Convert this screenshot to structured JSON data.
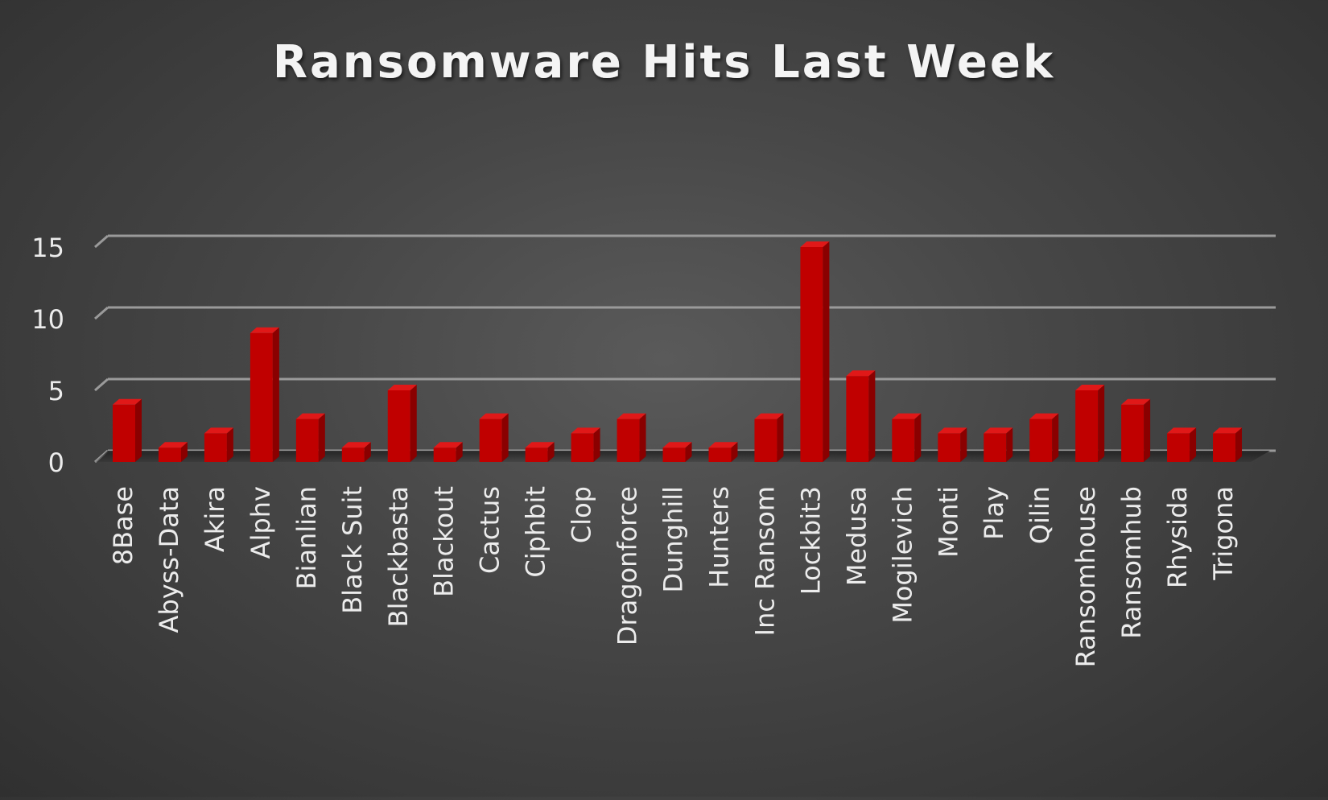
{
  "chart_data": {
    "type": "bar",
    "title": "Ransomware Hits Last Week",
    "xlabel": "",
    "ylabel": "",
    "ylim": [
      0,
      15
    ],
    "yticks": [
      0,
      5,
      10,
      15
    ],
    "grid": true,
    "legend": "none",
    "bar_color": "#c00000",
    "bar_side_color": "#8a0000",
    "bar_top_color": "#e01818",
    "categories": [
      "8Base",
      "Abyss-Data",
      "Akira",
      "Alphv",
      "Bianlian",
      "Black Suit",
      "Blackbasta",
      "Blackout",
      "Cactus",
      "Ciphbit",
      "Clop",
      "Dragonforce",
      "Dunghill",
      "Hunters",
      "Inc Ransom",
      "Lockbit3",
      "Medusa",
      "Mogilevich",
      "Monti",
      "Play",
      "Qilin",
      "Ransomhouse",
      "Ransomhub",
      "Rhysida",
      "Trigona"
    ],
    "values": [
      4,
      1,
      2,
      9,
      3,
      1,
      5,
      1,
      3,
      1,
      2,
      3,
      1,
      1,
      3,
      15,
      6,
      3,
      2,
      2,
      3,
      5,
      4,
      2,
      2
    ]
  }
}
